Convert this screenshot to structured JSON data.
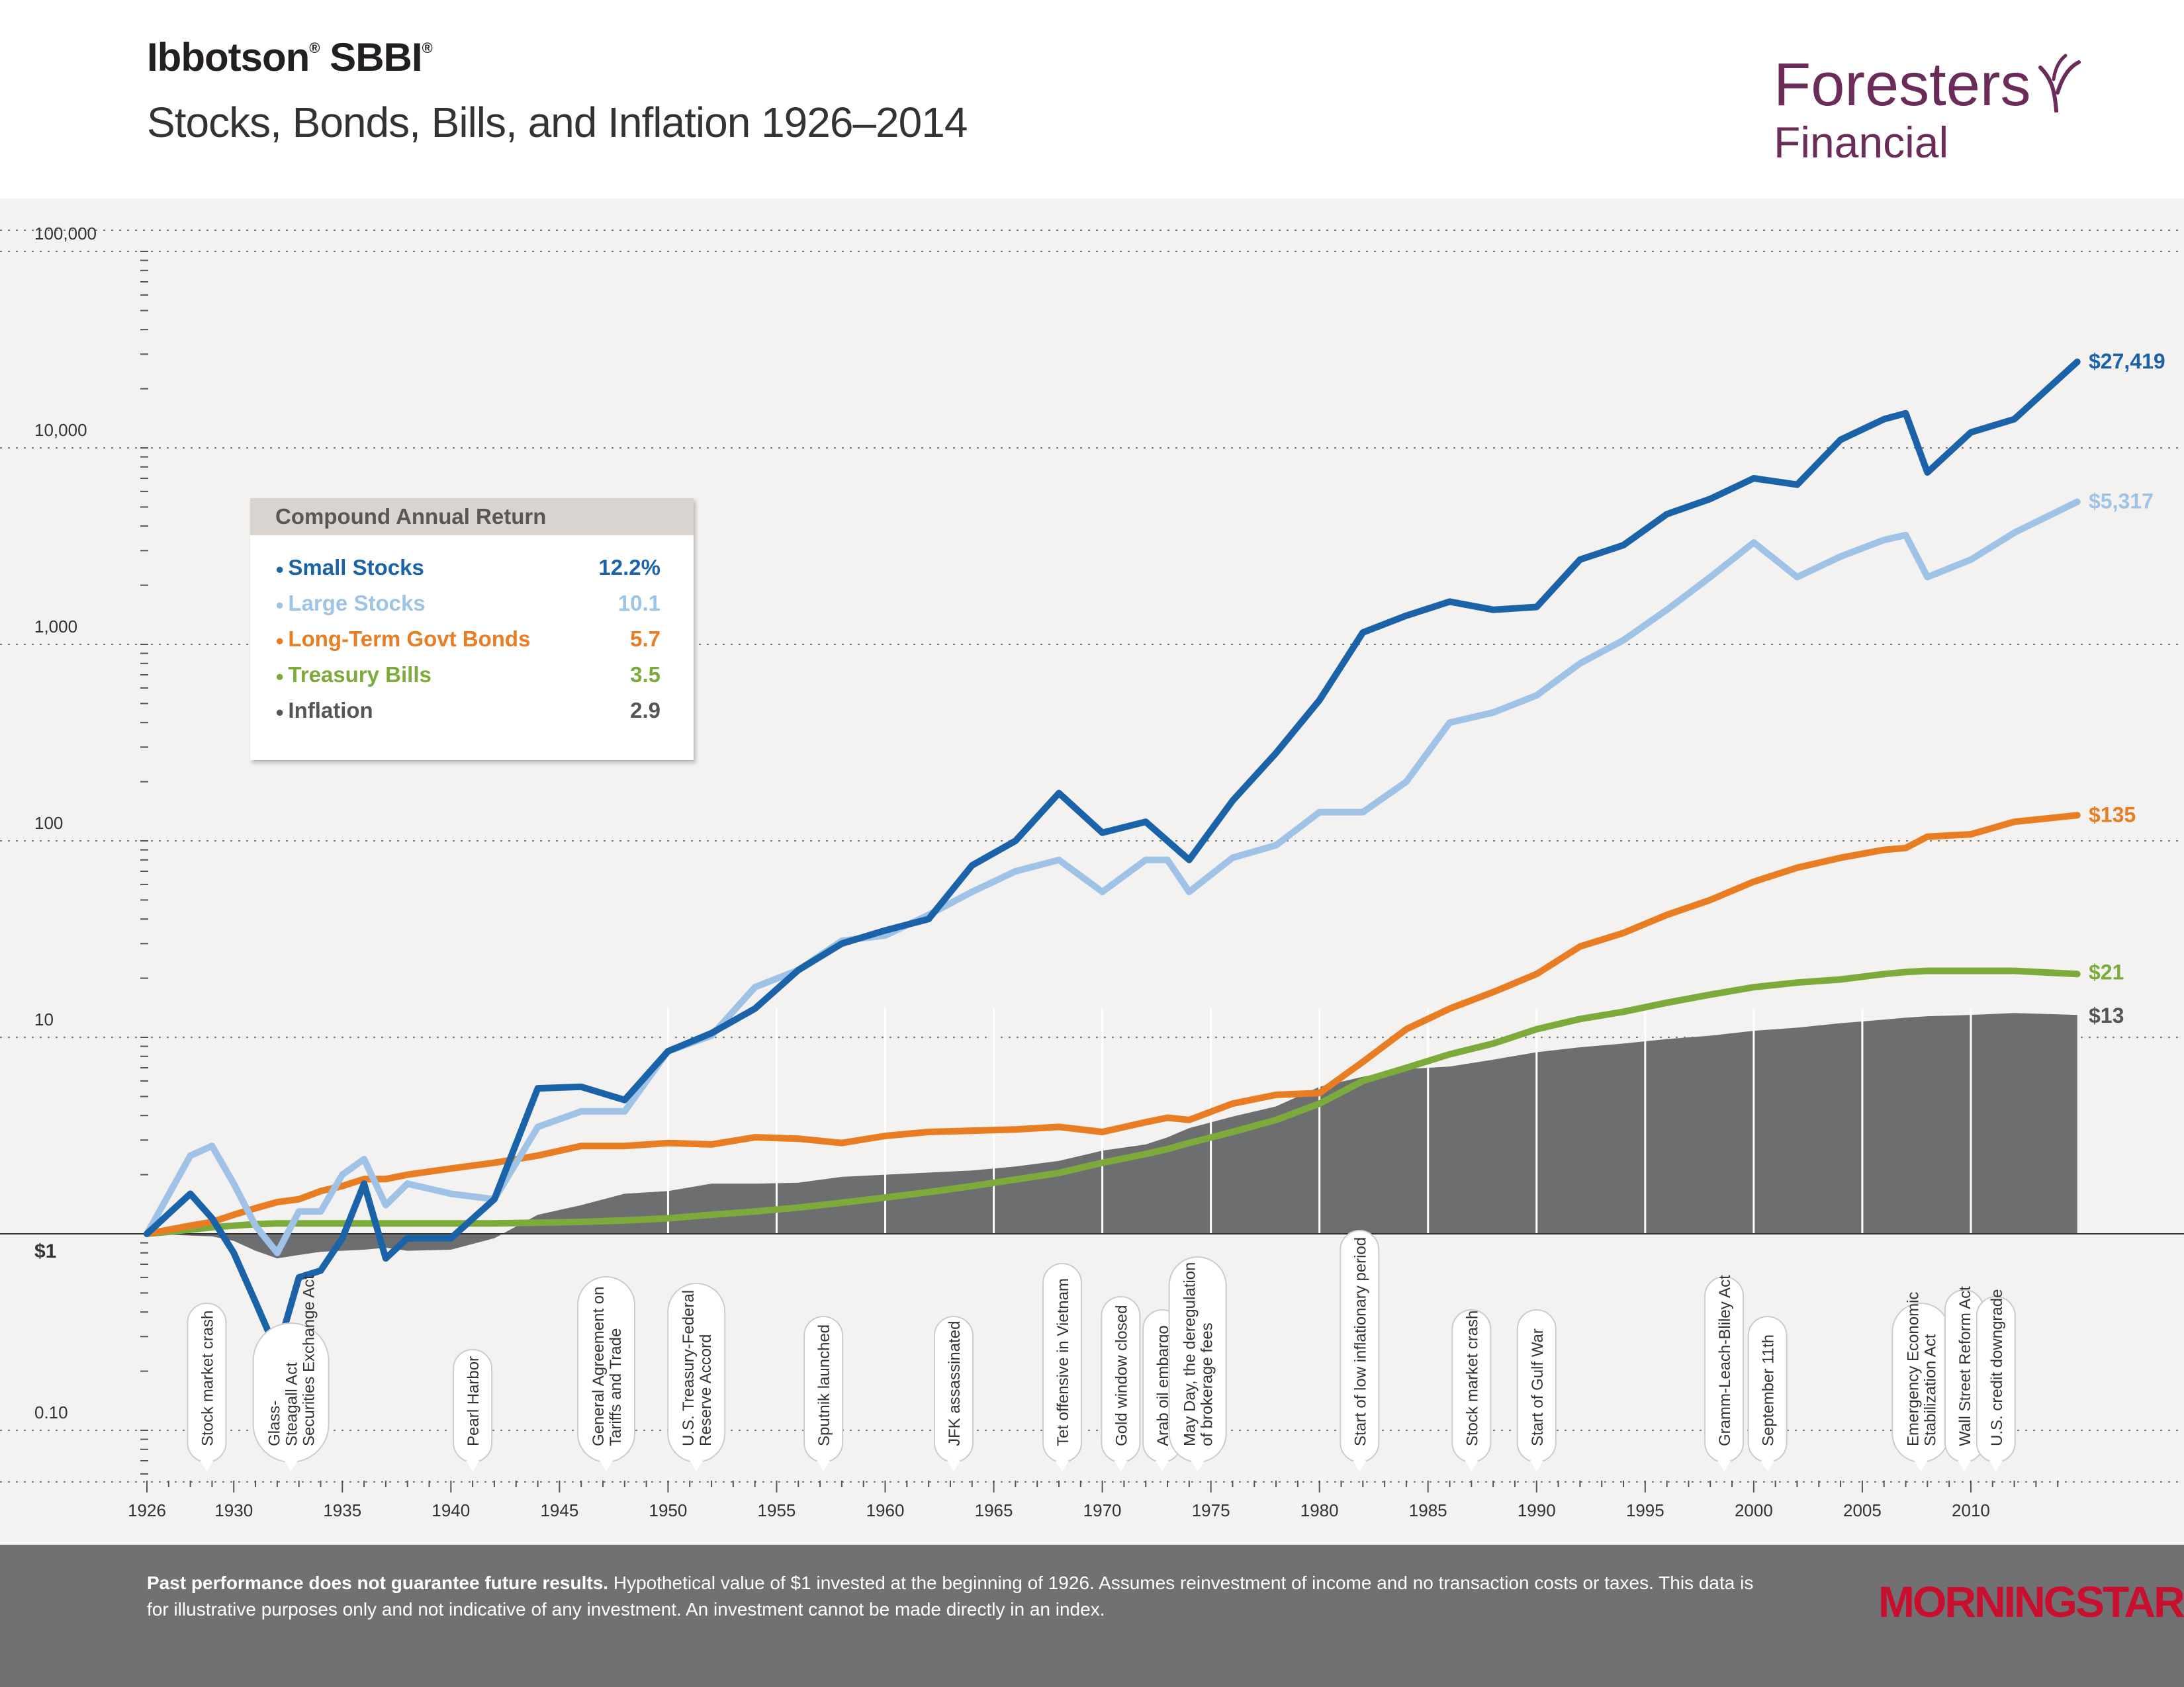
{
  "header": {
    "title_main": "Ibbotson",
    "title_sup1": "®",
    "title_sbbi": " SBBI",
    "title_sup2": "®",
    "subtitle": "Stocks, Bonds, Bills, and Inflation 1926–2014",
    "brand_line1": "Foresters",
    "brand_line2": "Financial"
  },
  "colors": {
    "small_stocks": "#1b63a8",
    "large_stocks": "#9ec3e6",
    "bonds": "#e87d24",
    "bills": "#7cab3c",
    "inflation": "#6d6e70",
    "brand": "#6b2c5a",
    "morningstar": "#c8102e"
  },
  "legend": {
    "title": "Compound Annual Return",
    "items": [
      {
        "label": "Small Stocks",
        "value": "12.2%",
        "color": "#1b63a8"
      },
      {
        "label": "Large Stocks",
        "value": "10.1",
        "color": "#9ec3e6"
      },
      {
        "label": "Long-Term Govt Bonds",
        "value": "5.7",
        "color": "#e87d24"
      },
      {
        "label": "Treasury Bills",
        "value": "3.5",
        "color": "#7cab3c"
      },
      {
        "label": "Inflation",
        "value": "2.9",
        "color": "#555557"
      }
    ]
  },
  "chart_data": {
    "type": "line",
    "y_scale": "log",
    "ylim": [
      0.05,
      200000
    ],
    "xlim": [
      1926,
      2015
    ],
    "y_ticks": [
      {
        "value": 100000,
        "label": "100,000"
      },
      {
        "value": 10000,
        "label": "10,000"
      },
      {
        "value": 1000,
        "label": "1,000"
      },
      {
        "value": 100,
        "label": "100"
      },
      {
        "value": 10,
        "label": "10"
      },
      {
        "value": 1,
        "label": "$1"
      },
      {
        "value": 0.1,
        "label": "0.10"
      }
    ],
    "x_ticks": [
      {
        "value": 1926,
        "label": "1926"
      },
      {
        "value": 1930,
        "label": "1930"
      },
      {
        "value": 1935,
        "label": "1935"
      },
      {
        "value": 1940,
        "label": "1940"
      },
      {
        "value": 1945,
        "label": "1945"
      },
      {
        "value": 1950,
        "label": "1950"
      },
      {
        "value": 1955,
        "label": "1955"
      },
      {
        "value": 1960,
        "label": "1960"
      },
      {
        "value": 1965,
        "label": "1965"
      },
      {
        "value": 1970,
        "label": "1970"
      },
      {
        "value": 1975,
        "label": "1975"
      },
      {
        "value": 1980,
        "label": "1980"
      },
      {
        "value": 1985,
        "label": "1985"
      },
      {
        "value": 1990,
        "label": "1990"
      },
      {
        "value": 1995,
        "label": "1995"
      },
      {
        "value": 2000,
        "label": "2000"
      },
      {
        "value": 2005,
        "label": "2005"
      },
      {
        "value": 2010,
        "label": "2010"
      }
    ],
    "x": [
      1926,
      1928,
      1929,
      1930,
      1931,
      1932,
      1933,
      1934,
      1935,
      1936,
      1937,
      1938,
      1940,
      1942,
      1944,
      1946,
      1948,
      1950,
      1952,
      1954,
      1956,
      1958,
      1960,
      1962,
      1964,
      1966,
      1968,
      1970,
      1972,
      1973,
      1974,
      1976,
      1978,
      1980,
      1982,
      1984,
      1986,
      1988,
      1990,
      1992,
      1994,
      1996,
      1998,
      2000,
      2002,
      2004,
      2006,
      2007,
      2008,
      2010,
      2012,
      2014.9
    ],
    "series": [
      {
        "key": "small",
        "values": [
          1,
          1.6,
          1.2,
          0.8,
          0.45,
          0.25,
          0.6,
          0.65,
          0.95,
          1.8,
          0.75,
          0.95,
          0.95,
          1.5,
          5.5,
          5.6,
          4.8,
          8.5,
          10.5,
          14,
          22,
          30,
          35,
          40,
          75,
          100,
          175,
          110,
          125,
          100,
          80,
          160,
          280,
          520,
          1150,
          1400,
          1650,
          1500,
          1550,
          2700,
          3200,
          4600,
          5500,
          7000,
          6500,
          11000,
          14000,
          15000,
          7500,
          12000,
          14000,
          27419
        ]
      },
      {
        "key": "large",
        "values": [
          1,
          2.5,
          2.8,
          1.8,
          1.1,
          0.8,
          1.3,
          1.3,
          2,
          2.4,
          1.4,
          1.8,
          1.6,
          1.5,
          3.5,
          4.2,
          4.2,
          8.5,
          10.2,
          18,
          22,
          31,
          33,
          42,
          55,
          70,
          80,
          55,
          80,
          80,
          55,
          82,
          95,
          140,
          140,
          200,
          400,
          450,
          550,
          800,
          1050,
          1500,
          2200,
          3300,
          2200,
          2800,
          3400,
          3600,
          2200,
          2700,
          3700,
          5317
        ]
      },
      {
        "key": "bonds",
        "values": [
          1,
          1.1,
          1.15,
          1.25,
          1.35,
          1.45,
          1.5,
          1.65,
          1.75,
          1.9,
          1.9,
          2,
          2.15,
          2.3,
          2.5,
          2.8,
          2.8,
          2.9,
          2.85,
          3.1,
          3.05,
          2.9,
          3.15,
          3.3,
          3.35,
          3.4,
          3.5,
          3.3,
          3.7,
          3.9,
          3.8,
          4.6,
          5.1,
          5.2,
          7.5,
          11,
          14,
          17,
          21,
          29,
          34,
          42,
          50,
          62,
          73,
          82,
          90,
          92,
          105,
          108,
          125,
          135
        ]
      },
      {
        "key": "bills",
        "values": [
          1,
          1.05,
          1.08,
          1.1,
          1.12,
          1.13,
          1.13,
          1.13,
          1.13,
          1.13,
          1.13,
          1.13,
          1.13,
          1.13,
          1.14,
          1.15,
          1.17,
          1.2,
          1.25,
          1.3,
          1.36,
          1.44,
          1.53,
          1.63,
          1.75,
          1.89,
          2.04,
          2.3,
          2.55,
          2.7,
          2.9,
          3.3,
          3.8,
          4.6,
          6,
          7,
          8.2,
          9.3,
          11,
          12.4,
          13.5,
          15,
          16.5,
          18,
          19,
          19.7,
          21,
          21.5,
          21.8,
          21.8,
          21.8,
          21
        ]
      },
      {
        "key": "inflation",
        "values": [
          1,
          0.98,
          0.97,
          0.92,
          0.82,
          0.75,
          0.78,
          0.81,
          0.82,
          0.83,
          0.85,
          0.82,
          0.83,
          0.95,
          1.25,
          1.4,
          1.6,
          1.65,
          1.8,
          1.8,
          1.82,
          1.95,
          2,
          2.05,
          2.1,
          2.2,
          2.35,
          2.65,
          2.85,
          3.1,
          3.45,
          3.95,
          4.45,
          5.6,
          6.3,
          6.9,
          7.1,
          7.7,
          8.4,
          8.9,
          9.3,
          9.8,
          10.2,
          10.8,
          11.2,
          11.8,
          12.3,
          12.6,
          12.8,
          13,
          13.3,
          13
        ]
      }
    ],
    "end_labels": [
      {
        "key": "small",
        "value": 27419,
        "label": "$27,419"
      },
      {
        "key": "large",
        "value": 5317,
        "label": "$5,317"
      },
      {
        "key": "bonds",
        "value": 135,
        "label": "$135"
      },
      {
        "key": "bills",
        "value": 21,
        "label": "$21"
      },
      {
        "key": "inflation",
        "value": 13,
        "label": "$13"
      }
    ],
    "events": [
      {
        "year": 1929,
        "lines": [
          "Stock market crash"
        ]
      },
      {
        "year": 1933,
        "lines": [
          "Glass-",
          "Steagall Act",
          "Securities Exchange Act"
        ]
      },
      {
        "year": 1941,
        "lines": [
          "Pearl Harbor"
        ]
      },
      {
        "year": 1947,
        "lines": [
          "General Agreement on",
          "Tariffs and Trade"
        ]
      },
      {
        "year": 1951,
        "lines": [
          "U.S. Treasury-Federal",
          "Reserve Accord"
        ]
      },
      {
        "year": 1957,
        "lines": [
          "Sputnik launched"
        ]
      },
      {
        "year": 1963,
        "lines": [
          "JFK assassinated"
        ]
      },
      {
        "year": 1968,
        "lines": [
          "Tet offensive in Vietnam"
        ]
      },
      {
        "year": 1971,
        "lines": [
          "Gold window closed"
        ]
      },
      {
        "year": 1973,
        "lines": [
          "Arab oil embargo"
        ]
      },
      {
        "year": 1975,
        "lines": [
          "May Day, the deregulation",
          "of brokerage fees"
        ]
      },
      {
        "year": 1982,
        "lines": [
          "Start of low inflationary period"
        ]
      },
      {
        "year": 1987,
        "lines": [
          "Stock market crash"
        ]
      },
      {
        "year": 1990,
        "lines": [
          "Start of Gulf War"
        ]
      },
      {
        "year": 1999,
        "lines": [
          "Gramm-Leach-Bliley Act"
        ]
      },
      {
        "year": 2001,
        "lines": [
          "September 11th"
        ]
      },
      {
        "year": 2008,
        "lines": [
          "Emergency Economic",
          "Stabilization Act"
        ]
      },
      {
        "year": 2010,
        "lines": [
          "Wall Street Reform Act"
        ]
      },
      {
        "year": 2011,
        "lines": [
          "U.S. credit downgrade"
        ]
      }
    ]
  },
  "footer": {
    "bold": "Past performance does not guarantee future results.",
    "text": " Hypothetical value of $1 invested at the beginning of 1926. Assumes reinvestment of income and no transaction costs or taxes. This data is for illustrative purposes only and not indicative of any investment. An investment cannot be made directly in an index.",
    "logo": "MORNINGSTAR"
  }
}
